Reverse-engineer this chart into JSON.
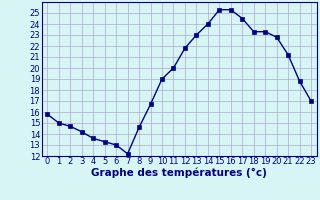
{
  "x": [
    0,
    1,
    2,
    3,
    4,
    5,
    6,
    7,
    8,
    9,
    10,
    11,
    12,
    13,
    14,
    15,
    16,
    17,
    18,
    19,
    20,
    21,
    22,
    23
  ],
  "y": [
    15.8,
    15.0,
    14.7,
    14.2,
    13.6,
    13.3,
    13.0,
    12.2,
    14.6,
    16.7,
    19.0,
    20.0,
    21.8,
    23.0,
    24.0,
    25.3,
    25.3,
    24.5,
    23.3,
    23.3,
    22.8,
    21.2,
    18.8,
    17.0
  ],
  "line_color": "#00008B",
  "marker": "s",
  "markersize": 2.2,
  "linewidth": 1.0,
  "xlabel": "Graphe des températures (°c)",
  "xlabel_color": "#00008B",
  "bg_color": "#d8f5f5",
  "grid_color": "#aaaacc",
  "tick_color": "#00008B",
  "ylim": [
    12,
    26
  ],
  "yticks": [
    12,
    13,
    14,
    15,
    16,
    17,
    18,
    19,
    20,
    21,
    22,
    23,
    24,
    25
  ],
  "xticks": [
    0,
    1,
    2,
    3,
    4,
    5,
    6,
    7,
    8,
    9,
    10,
    11,
    12,
    13,
    14,
    15,
    16,
    17,
    18,
    19,
    20,
    21,
    22,
    23
  ],
  "xlim": [
    -0.5,
    23.5
  ],
  "spine_color": "#00008B",
  "label_fontsize": 7,
  "tick_fontsize": 6,
  "xlabel_fontsize": 7.5
}
